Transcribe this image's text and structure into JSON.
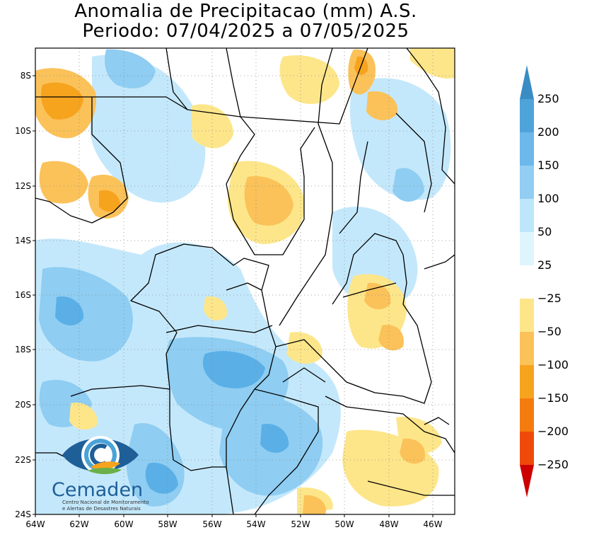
{
  "title": {
    "line1": "Anomalia de Precipitacao (mm) A.S.",
    "line2": "Periodo: 07/04/2025 a 07/05/2025"
  },
  "map": {
    "lat_labels": [
      "8S",
      "10S",
      "12S",
      "14S",
      "16S",
      "18S",
      "20S",
      "22S",
      "24S"
    ],
    "lon_labels": [
      "64W",
      "62W",
      "60W",
      "58W",
      "56W",
      "54W",
      "52W",
      "50W",
      "48W",
      "46W"
    ]
  },
  "colorbar": {
    "labels": [
      "250",
      "200",
      "150",
      "100",
      "50",
      "25",
      "−25",
      "−50",
      "−100",
      "−150",
      "−200",
      "−250"
    ],
    "colors": {
      "c250": "#3a8cc4",
      "c200": "#4ea3d9",
      "c150": "#6cb8ea",
      "c100": "#92cdf2",
      "c50": "#bde6fa",
      "c25": "#dff5fd",
      "zero": "#ffffff",
      "m25": "#fde68a",
      "m50": "#fbc25a",
      "m100": "#f6a31e",
      "m150": "#f47c0f",
      "m200": "#f04a0a",
      "m250": "#cc0000"
    }
  },
  "logo": {
    "name": "Cemaden",
    "subtitle_line1": "Centro Nacional de Monitoramento",
    "subtitle_line2": "e Alertas de Desastres Naturais"
  }
}
